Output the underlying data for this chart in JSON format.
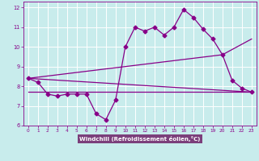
{
  "title": "",
  "xlabel": "Windchill (Refroidissement éolien,°C)",
  "background_color": "#c8ecec",
  "xlabel_bg": "#7b3f7b",
  "grid_color": "#ffffff",
  "line_color": "#880088",
  "xlim": [
    -0.5,
    23.5
  ],
  "ylim": [
    6,
    12.3
  ],
  "xticks": [
    0,
    1,
    2,
    3,
    4,
    5,
    6,
    7,
    8,
    9,
    10,
    11,
    12,
    13,
    14,
    15,
    16,
    17,
    18,
    19,
    20,
    21,
    22,
    23
  ],
  "yticks": [
    6,
    7,
    8,
    9,
    10,
    11,
    12
  ],
  "series1_x": [
    0,
    1,
    2,
    3,
    4,
    5,
    6,
    7,
    8,
    9,
    10,
    11,
    12,
    13,
    14,
    15,
    16,
    17,
    18,
    19,
    20,
    21,
    22,
    23
  ],
  "series1_y": [
    8.4,
    8.2,
    7.6,
    7.5,
    7.6,
    7.6,
    7.6,
    6.6,
    6.3,
    7.3,
    10.0,
    11.0,
    10.8,
    11.0,
    10.6,
    11.0,
    11.9,
    11.5,
    10.9,
    10.4,
    9.6,
    8.3,
    7.9,
    7.7
  ],
  "series2_x": [
    0,
    23
  ],
  "series2_y": [
    8.4,
    7.7
  ],
  "series3_x": [
    0,
    20,
    23
  ],
  "series3_y": [
    8.4,
    9.6,
    10.4
  ],
  "series4_x": [
    0,
    23
  ],
  "series4_y": [
    7.7,
    7.7
  ],
  "markersize": 2.5,
  "linewidth": 0.9
}
